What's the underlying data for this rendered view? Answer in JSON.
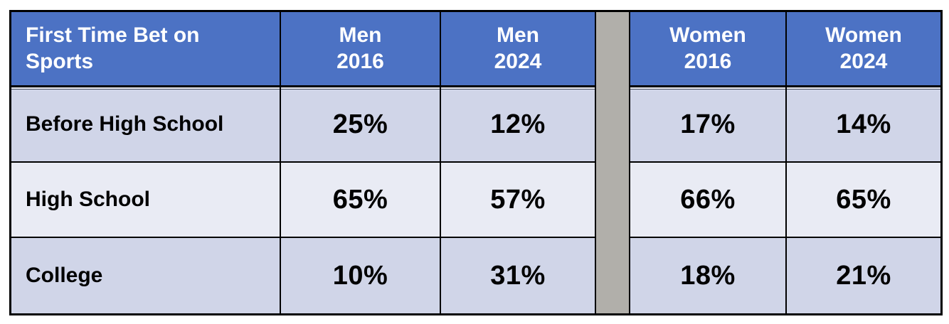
{
  "table": {
    "title": "First Time Bet on\nSports",
    "col_headers": [
      "Men\n2016",
      "Men\n2024",
      "Women\n2016",
      "Women\n2024"
    ],
    "rows": [
      {
        "label": "Before High School",
        "values": [
          "25%",
          "12%",
          "17%",
          "14%"
        ]
      },
      {
        "label": "High School",
        "values": [
          "65%",
          "57%",
          "66%",
          "65%"
        ]
      },
      {
        "label": "College",
        "values": [
          "10%",
          "31%",
          "18%",
          "21%"
        ]
      }
    ]
  },
  "chart_data": {
    "type": "table",
    "title": "First Time Bet on Sports",
    "columns": [
      "Men 2016",
      "Men 2024",
      "Women 2016",
      "Women 2024"
    ],
    "categories": [
      "Before High School",
      "High School",
      "College"
    ],
    "series": [
      {
        "name": "Men 2016",
        "values": [
          25,
          65,
          10
        ]
      },
      {
        "name": "Men 2024",
        "values": [
          12,
          57,
          31
        ]
      },
      {
        "name": "Women 2016",
        "values": [
          17,
          66,
          18
        ]
      },
      {
        "name": "Women 2024",
        "values": [
          14,
          65,
          21
        ]
      }
    ],
    "unit": "%"
  },
  "colors": {
    "header_fill": "#4c72c4",
    "header_text": "#ffffff",
    "row_odd_fill": "#d0d5e8",
    "row_even_fill": "#e9ebf4",
    "separator_fill": "#b1afaa",
    "border": "#000000",
    "body_text": "#000000"
  }
}
